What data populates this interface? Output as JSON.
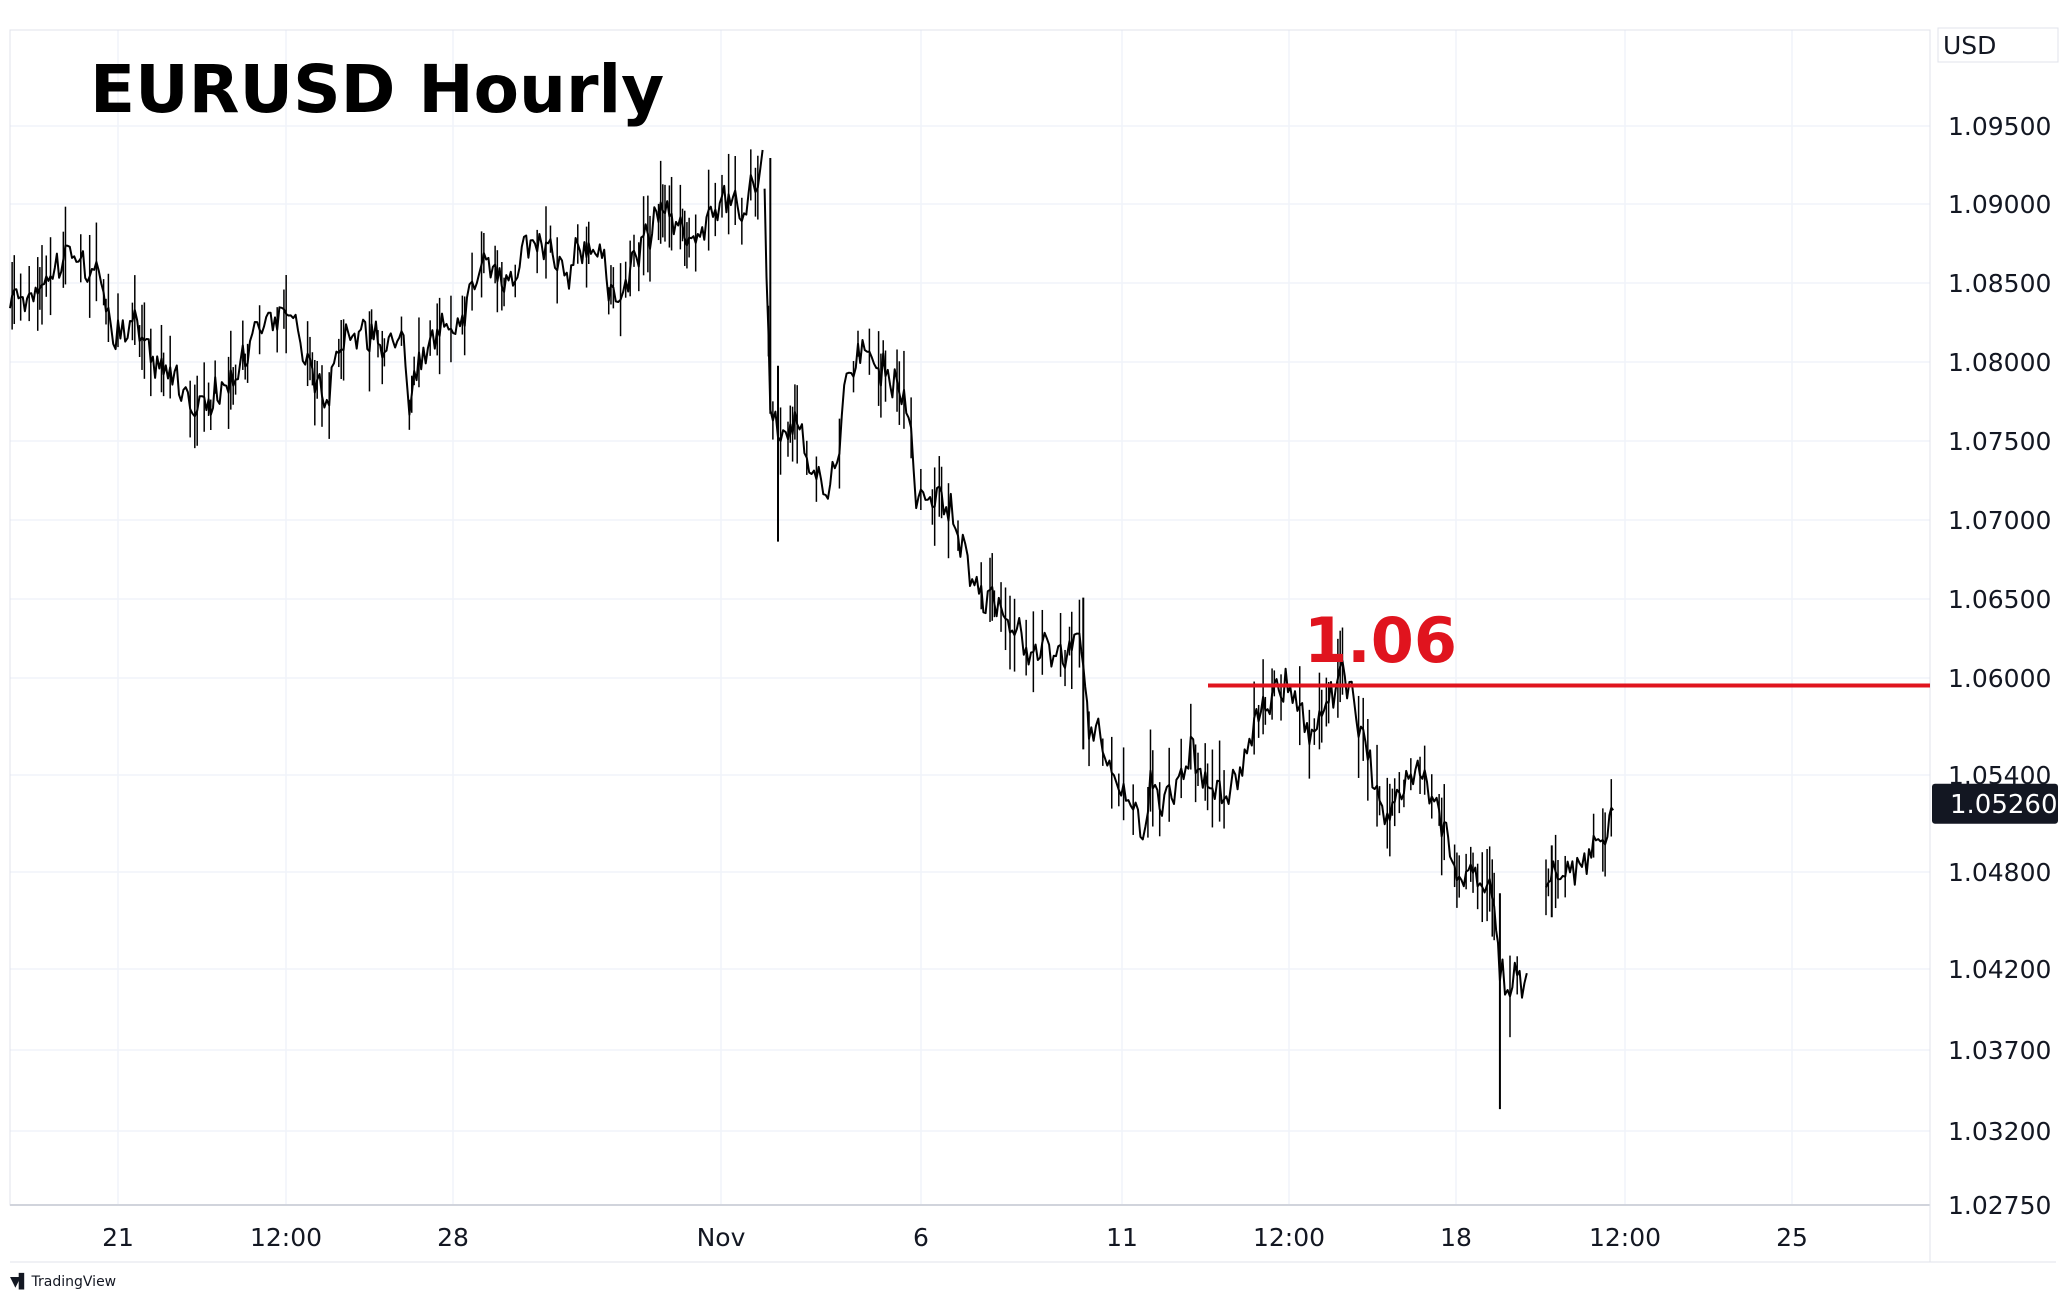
{
  "brand": {
    "logo_icon": "tradingview-logo-icon",
    "name": "TradingView"
  },
  "chart_data": {
    "type": "candlestick",
    "title": "EURUSD Hourly",
    "currency_label": "USD",
    "x_tick_labels": [
      "21",
      "12:00",
      "28",
      "Nov",
      "6",
      "11",
      "12:00",
      "18",
      "12:00",
      "25"
    ],
    "y_tick_labels": [
      "1.09500",
      "1.09000",
      "1.08500",
      "1.08000",
      "1.07500",
      "1.07000",
      "1.06500",
      "1.06000",
      "1.05400",
      "1.04800",
      "1.04200",
      "1.03700",
      "1.03200",
      "1.02750"
    ],
    "last_price": "1.05260",
    "last_price_value": 1.0526,
    "annotation": {
      "text": "1.06",
      "value": 1.06,
      "color": "#e0141e"
    },
    "grid": true,
    "series": [
      {
        "approx_path": [
          [
            0.0,
            1.0845
          ],
          [
            0.01,
            1.0838
          ],
          [
            0.02,
            1.0855
          ],
          [
            0.03,
            1.0872
          ],
          [
            0.038,
            1.0865
          ],
          [
            0.045,
            1.0862
          ],
          [
            0.05,
            1.0835
          ],
          [
            0.055,
            1.0818
          ],
          [
            0.06,
            1.0826
          ],
          [
            0.065,
            1.083
          ],
          [
            0.07,
            1.0808
          ],
          [
            0.08,
            1.0795
          ],
          [
            0.088,
            1.079
          ],
          [
            0.095,
            1.0778
          ],
          [
            0.1,
            1.077
          ],
          [
            0.108,
            1.0783
          ],
          [
            0.115,
            1.0788
          ],
          [
            0.12,
            1.0798
          ],
          [
            0.125,
            1.081
          ],
          [
            0.13,
            1.0824
          ],
          [
            0.138,
            1.0826
          ],
          [
            0.145,
            1.083
          ],
          [
            0.15,
            1.0826
          ],
          [
            0.155,
            1.0798
          ],
          [
            0.16,
            1.0786
          ],
          [
            0.165,
            1.078
          ],
          [
            0.17,
            1.0802
          ],
          [
            0.175,
            1.0822
          ],
          [
            0.185,
            1.082
          ],
          [
            0.195,
            1.0815
          ],
          [
            0.205,
            1.0812
          ],
          [
            0.208,
            1.078
          ],
          [
            0.213,
            1.0802
          ],
          [
            0.22,
            1.0818
          ],
          [
            0.225,
            1.0822
          ],
          [
            0.232,
            1.0822
          ],
          [
            0.238,
            1.0835
          ],
          [
            0.242,
            1.0852
          ],
          [
            0.248,
            1.0865
          ],
          [
            0.255,
            1.0855
          ],
          [
            0.262,
            1.0858
          ],
          [
            0.27,
            1.0878
          ],
          [
            0.278,
            1.0875
          ],
          [
            0.285,
            1.086
          ],
          [
            0.29,
            1.0858
          ],
          [
            0.298,
            1.0876
          ],
          [
            0.306,
            1.0873
          ],
          [
            0.313,
            1.0848
          ],
          [
            0.318,
            1.0838
          ],
          [
            0.322,
            1.0852
          ],
          [
            0.325,
            1.0868
          ],
          [
            0.33,
            1.0875
          ],
          [
            0.34,
            1.09
          ],
          [
            0.348,
            1.0888
          ],
          [
            0.356,
            1.0878
          ],
          [
            0.365,
            1.0888
          ],
          [
            0.372,
            1.0904
          ],
          [
            0.38,
            1.0898
          ],
          [
            0.387,
            1.0912
          ],
          [
            0.392,
            1.0935
          ]
        ]
      },
      {
        "approx_path": [
          [
            0.393,
            1.09
          ],
          [
            0.396,
            1.078
          ],
          [
            0.4,
            1.076
          ],
          [
            0.404,
            1.076
          ],
          [
            0.41,
            1.0765
          ],
          [
            0.415,
            1.0742
          ],
          [
            0.42,
            1.0725
          ],
          [
            0.426,
            1.0725
          ],
          [
            0.432,
            1.0755
          ],
          [
            0.437,
            1.08
          ],
          [
            0.444,
            1.081
          ],
          [
            0.45,
            1.08
          ],
          [
            0.456,
            1.0795
          ],
          [
            0.462,
            1.079
          ],
          [
            0.468,
            1.0775
          ],
          [
            0.472,
            1.0715
          ],
          [
            0.478,
            1.072
          ],
          [
            0.484,
            1.0715
          ],
          [
            0.49,
            1.071
          ],
          [
            0.495,
            1.069
          ],
          [
            0.5,
            1.0668
          ],
          [
            0.507,
            1.0655
          ],
          [
            0.515,
            1.065
          ],
          [
            0.522,
            1.064
          ],
          [
            0.528,
            1.0625
          ],
          [
            0.533,
            1.0618
          ],
          [
            0.54,
            1.0622
          ],
          [
            0.546,
            1.0624
          ],
          [
            0.553,
            1.062
          ],
          [
            0.557,
            1.063
          ],
          [
            0.559,
            1.0615
          ],
          [
            0.562,
            1.0575
          ],
          [
            0.568,
            1.0565
          ],
          [
            0.575,
            1.0545
          ],
          [
            0.58,
            1.0532
          ],
          [
            0.585,
            1.0525
          ],
          [
            0.59,
            1.0505
          ],
          [
            0.594,
            1.054
          ],
          [
            0.6,
            1.0525
          ],
          [
            0.605,
            1.053
          ],
          [
            0.61,
            1.054
          ],
          [
            0.615,
            1.056
          ],
          [
            0.62,
            1.0545
          ],
          [
            0.625,
            1.0535
          ],
          [
            0.63,
            1.053
          ],
          [
            0.637,
            1.0538
          ],
          [
            0.643,
            1.0552
          ],
          [
            0.648,
            1.0575
          ],
          [
            0.655,
            1.059
          ],
          [
            0.662,
            1.0598
          ],
          [
            0.668,
            1.0598
          ],
          [
            0.673,
            1.0585
          ],
          [
            0.678,
            1.057
          ],
          [
            0.682,
            1.0582
          ],
          [
            0.688,
            1.0595
          ],
          [
            0.694,
            1.0605
          ],
          [
            0.7,
            1.059
          ],
          [
            0.706,
            1.056
          ],
          [
            0.712,
            1.0535
          ],
          [
            0.716,
            1.0518
          ],
          [
            0.72,
            1.0525
          ],
          [
            0.726,
            1.054
          ],
          [
            0.732,
            1.055
          ],
          [
            0.738,
            1.054
          ],
          [
            0.743,
            1.0525
          ],
          [
            0.747,
            1.051
          ],
          [
            0.75,
            1.0488
          ],
          [
            0.756,
            1.048
          ],
          [
            0.762,
            1.048
          ],
          [
            0.768,
            1.0478
          ],
          [
            0.772,
            1.047
          ],
          [
            0.774,
            1.045
          ],
          [
            0.776,
            1.042
          ],
          [
            0.78,
            1.041
          ],
          [
            0.785,
            1.0415
          ],
          [
            0.79,
            1.042
          ]
        ]
      },
      {
        "approx_path": [
          [
            0.8,
            1.048
          ],
          [
            0.805,
            1.0482
          ],
          [
            0.81,
            1.0478
          ],
          [
            0.815,
            1.0485
          ],
          [
            0.82,
            1.0488
          ],
          [
            0.826,
            1.05
          ],
          [
            0.832,
            1.0508
          ],
          [
            0.835,
            1.0522
          ]
        ]
      }
    ]
  }
}
